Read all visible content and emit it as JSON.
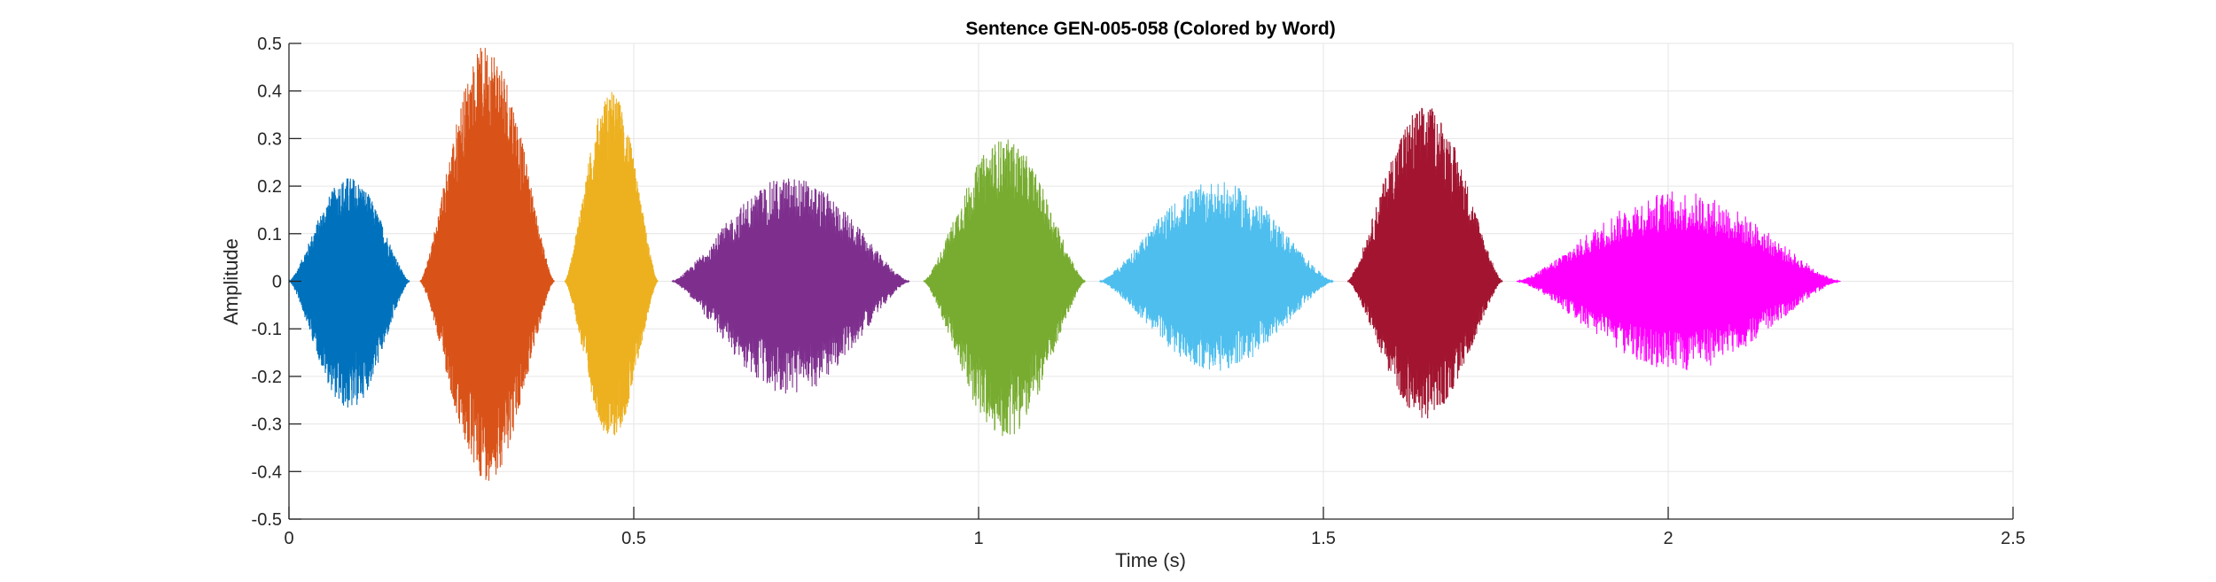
{
  "chart_data": {
    "type": "line",
    "title": "Sentence GEN-005-058 (Colored by Word)",
    "xlabel": "Time (s)",
    "ylabel": "Amplitude",
    "xlim": [
      0,
      2.5
    ],
    "ylim": [
      -0.5,
      0.5
    ],
    "xticks": [
      0,
      0.5,
      1,
      1.5,
      2,
      2.5
    ],
    "xtick_labels": [
      "0",
      "0.5",
      "1",
      "1.5",
      "2",
      "2.5"
    ],
    "yticks": [
      -0.5,
      -0.4,
      -0.3,
      -0.2,
      -0.1,
      0,
      0.1,
      0.2,
      0.3,
      0.4,
      0.5
    ],
    "ytick_labels": [
      "-0.5",
      "-0.4",
      "-0.3",
      "-0.2",
      "-0.1",
      "0",
      "0.1",
      "0.2",
      "0.3",
      "0.4",
      "0.5"
    ],
    "grid": true,
    "series": [
      {
        "color": "#0072BD",
        "start": 0.0,
        "end": 0.175,
        "peak_pos": 0.22,
        "peak_neg": -0.27
      },
      {
        "color": "#D95319",
        "start": 0.19,
        "end": 0.385,
        "peak_pos": 0.5,
        "peak_neg": -0.42
      },
      {
        "color": "#EDB120",
        "start": 0.4,
        "end": 0.535,
        "peak_pos": 0.4,
        "peak_neg": -0.33
      },
      {
        "color": "#7E2F8E",
        "start": 0.555,
        "end": 0.9,
        "peak_pos": 0.22,
        "peak_neg": -0.24
      },
      {
        "color": "#77AC30",
        "start": 0.92,
        "end": 1.155,
        "peak_pos": 0.3,
        "peak_neg": -0.33
      },
      {
        "color": "#4DBEEE",
        "start": 1.175,
        "end": 1.515,
        "peak_pos": 0.21,
        "peak_neg": -0.19
      },
      {
        "color": "#A2142F",
        "start": 1.535,
        "end": 1.76,
        "peak_pos": 0.37,
        "peak_neg": -0.29
      },
      {
        "color": "#FF00FF",
        "start": 1.78,
        "end": 2.25,
        "peak_pos": 0.19,
        "peak_neg": -0.19
      }
    ]
  }
}
